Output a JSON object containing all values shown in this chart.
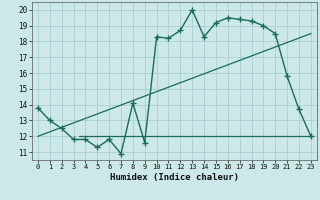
{
  "title": "",
  "xlabel": "Humidex (Indice chaleur)",
  "bg_color": "#cce8e8",
  "grid_color": "#aad0d0",
  "line_color": "#1a6b5a",
  "xlim": [
    -0.5,
    23.5
  ],
  "ylim": [
    10.5,
    20.5
  ],
  "xticks": [
    0,
    1,
    2,
    3,
    4,
    5,
    6,
    7,
    8,
    9,
    10,
    11,
    12,
    13,
    14,
    15,
    16,
    17,
    18,
    19,
    20,
    21,
    22,
    23
  ],
  "yticks": [
    11,
    12,
    13,
    14,
    15,
    16,
    17,
    18,
    19,
    20
  ],
  "curve_x": [
    0,
    1,
    2,
    3,
    4,
    5,
    6,
    7,
    8,
    9,
    10,
    11,
    12,
    13,
    14,
    15,
    16,
    17,
    18,
    19,
    20,
    21,
    22,
    23
  ],
  "curve_y": [
    13.8,
    13.0,
    12.5,
    11.8,
    11.8,
    11.3,
    11.8,
    10.9,
    14.1,
    11.6,
    18.3,
    18.2,
    18.7,
    20.0,
    18.3,
    19.2,
    19.5,
    19.4,
    19.3,
    19.0,
    18.5,
    15.8,
    13.7,
    12.0
  ],
  "trend_x": [
    0,
    23
  ],
  "trend_y": [
    12.0,
    18.5
  ],
  "hline_y": 12.0,
  "hline_x_start": 3.5,
  "hline_x_end": 23
}
